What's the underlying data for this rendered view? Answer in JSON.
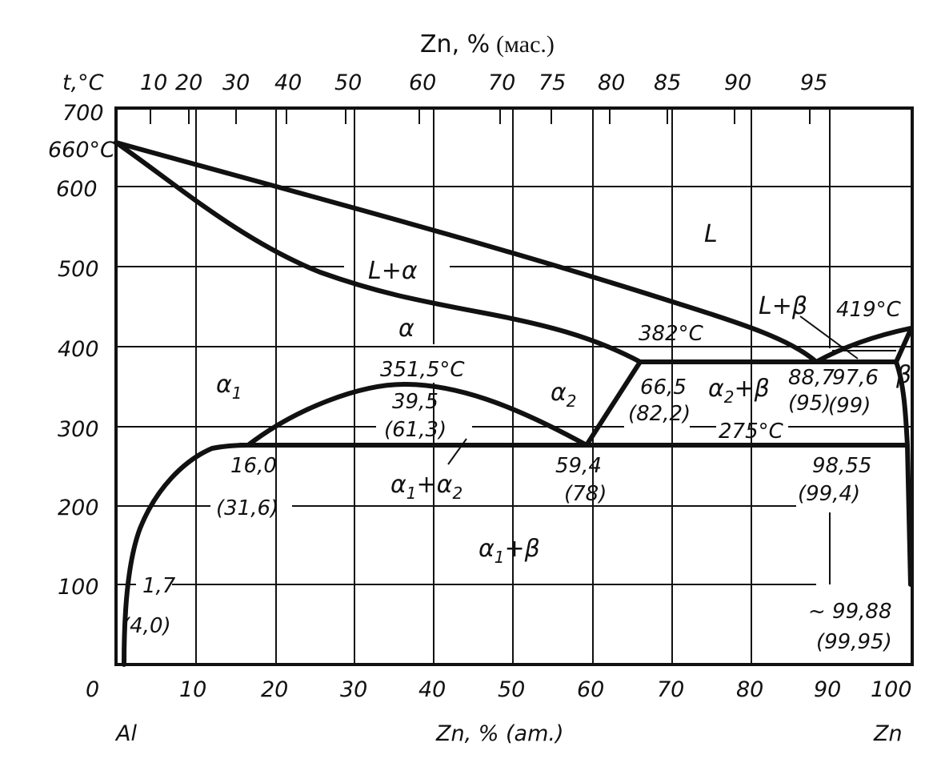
{
  "top_axis": {
    "title": "Zn, %",
    "unit": "(мас.)",
    "ticks": [
      "10",
      "20",
      "30",
      "40",
      "50",
      "60",
      "70",
      "75",
      "80",
      "85",
      "90",
      "95"
    ]
  },
  "y_axis": {
    "label": "t,°C",
    "ticks": [
      "700",
      "600",
      "500",
      "400",
      "300",
      "200",
      "100",
      "0"
    ],
    "melting_al": "660°C"
  },
  "bottom_axis": {
    "title": "Zn, % (am.)",
    "ticks": [
      "10",
      "20",
      "30",
      "40",
      "50",
      "60",
      "70",
      "80",
      "90",
      "100"
    ],
    "left_element": "Al",
    "right_element": "Zn"
  },
  "regions": {
    "liquid": "L",
    "l_alpha": "L+α",
    "l_beta": "L+β",
    "alpha": "α",
    "alpha1": "α",
    "alpha1_sub": "1",
    "alpha2": "α",
    "alpha2_sub": "2",
    "alpha2_beta": "α",
    "alpha2_beta_sub": "2",
    "alpha2_beta_tail": "+β",
    "alpha1_alpha2_a": "α",
    "alpha1_alpha2_sub1": "1",
    "alpha1_alpha2_plus": "+α",
    "alpha1_alpha2_sub2": "2",
    "alpha1_beta": "α",
    "alpha1_beta_sub": "1",
    "alpha1_beta_tail": "+β",
    "beta": "β"
  },
  "points": {
    "t_eutectoid_top": "382°C",
    "t_zn_melt": "419°C",
    "t_critical": "351,5°C",
    "t_monotectoid": "275°C",
    "p_66": "66,5",
    "p_66_wt": "(82,2)",
    "p_88": "88,7",
    "p_88_wt": "(95)",
    "p_97": "97,6",
    "p_97_wt": "(99)",
    "p_39": "39,5",
    "p_39_wt": "(61,3)",
    "p_16": "16,0",
    "p_16_wt": "(31,6)",
    "p_59": "59,4",
    "p_59_wt": "(78)",
    "p_98": "98,55",
    "p_98_wt": "(99,4)",
    "p_17": "1,7",
    "p_17_wt": "(4,0)",
    "p_9988": "~ 99,88",
    "p_9988_wt": "(99,95)"
  }
}
